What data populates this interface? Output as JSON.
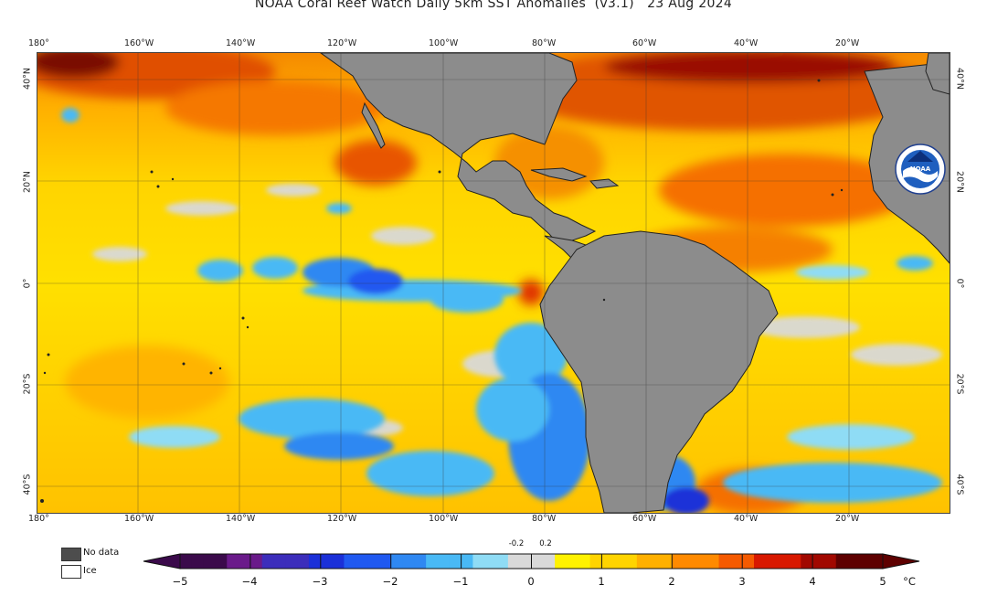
{
  "title": "NOAA Coral Reef Watch Daily 5km SST Anomalies  (v3.1)   23 Aug 2024",
  "map": {
    "lon_labels_top": [
      "180°",
      "160°W",
      "140°W",
      "120°W",
      "100°W",
      "80°W",
      "60°W",
      "40°W",
      "20°W"
    ],
    "lon_labels_bottom": [
      "180°",
      "160°W",
      "140°W",
      "120°W",
      "100°W",
      "80°W",
      "60°W",
      "40°W",
      "20°W"
    ],
    "lat_labels_left": [
      "40°N",
      "20°N",
      "0°",
      "20°S",
      "40°S"
    ],
    "lat_labels_right": [
      "40°N",
      "20°N",
      "0°",
      "20°S",
      "40°S"
    ],
    "lon_range_deg": [
      -180,
      -1
    ],
    "lat_range_deg": [
      45,
      -45
    ],
    "land_color": "#8c8c8c",
    "grid": true
  },
  "legend": {
    "no_data_label": "No data",
    "no_data_color": "#4d4d4d",
    "ice_label": "Ice",
    "ice_color": "#ffffff"
  },
  "colorbar": {
    "unit": "°C",
    "tick_labels": [
      "−5",
      "−4",
      "−3",
      "−2",
      "−1",
      "0",
      "1",
      "2",
      "3",
      "4",
      "5"
    ],
    "center_labels": [
      "-0.2",
      "0.2"
    ],
    "range": [
      -5,
      5
    ],
    "colors": [
      "#3b0a4b",
      "#6a1a8a",
      "#3c2dbb",
      "#1b30d8",
      "#2059f0",
      "#2f88f2",
      "#49b9f5",
      "#8fdcf5",
      "#d9d9d9",
      "#fff200",
      "#ffd400",
      "#ffb000",
      "#ff8a00",
      "#f55a00",
      "#d81800",
      "#a10800",
      "#5e0000"
    ]
  },
  "logo": {
    "name": "noaa-logo",
    "text": "NOAA"
  }
}
